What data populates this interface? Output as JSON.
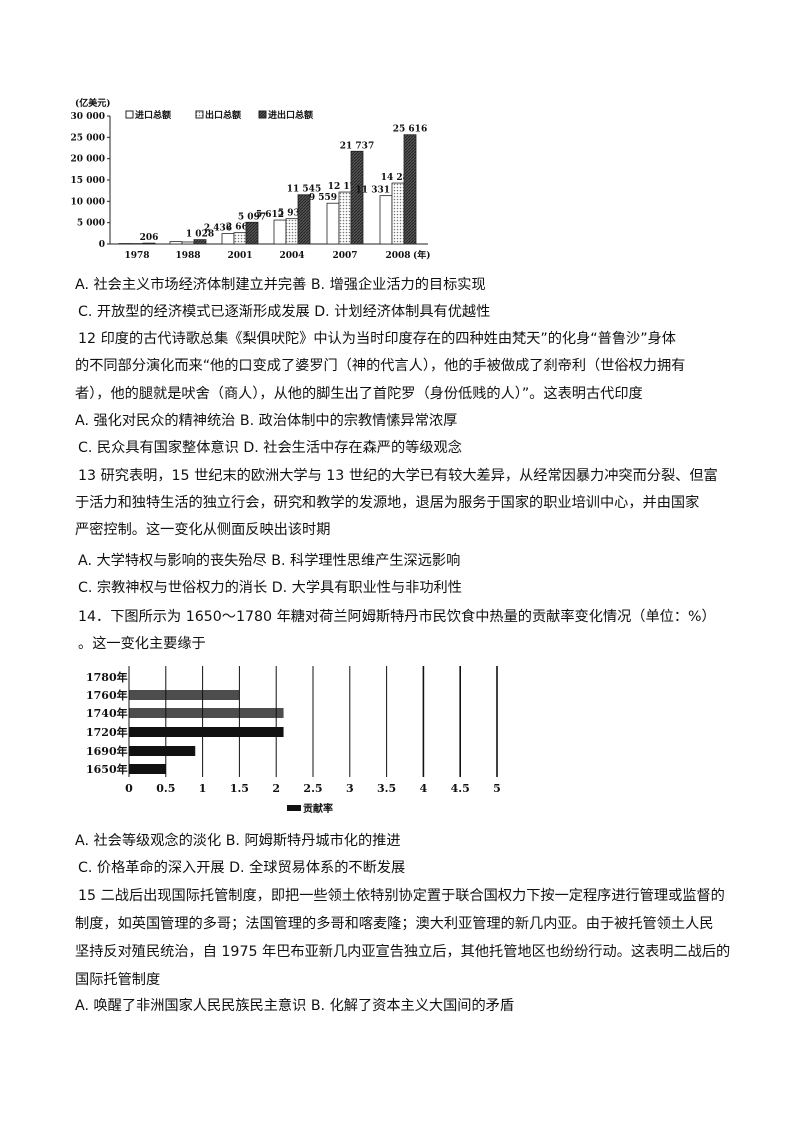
{
  "q11_options": {
    "A": "A. 社会主义市场经济体制建立并完善",
    "B": "B. 增强企业活力的目标实现",
    "C": "C. 开放型的经济模式已逐渐形成发展",
    "D": "D. 计划经济体制具有优越性"
  },
  "q12": {
    "stem": [
      "12 印度的古代诗歌总集《梨俱吠陀》中认为当时印度存在的四种姓由梵天”的化身“普鲁沙”身体",
      "的不同部分演化而来“他的口变成了婆罗门（神的代言人），他的手被做成了刹帝利（世俗权力拥有",
      "者），他的腿就是吠舍（商人），从他的脚生出了首陀罗（身份低贱的人）”。这表明古代印度"
    ],
    "A": "A. 强化对民众的精神统治",
    "B": "B. 政治体制中的宗教情愫异常浓厚",
    "C": "C. 民众具有国家整体意识",
    "D": "D. 社会生活中存在森严的等级观念"
  },
  "q13": {
    "stem": [
      "13 研究表明，15 世纪末的欧洲大学与 13 世纪的大学已有较大差异，从经常因暴力冲突而分裂、但富",
      "于活力和独特生活的独立行会，研究和教学的发源地，退居为服务于国家的职业培训中心，并由国家",
      "严密控制。这一变化从侧面反映出该时期"
    ],
    "A": "A. 大学特权与影响的丧失殆尽",
    "B": "B. 科学理性思维产生深远影响",
    "C": "C. 宗教神权与世俗权力的消长",
    "D": "D. 大学具有职业性与非功利性"
  },
  "q14": {
    "stem": [
      "14．下图所示为 1650～1780 年糖对荷兰阿姆斯特丹市民饮食中热量的贡献率变化情况（单位：%）",
      "。这一变化主要缘于"
    ],
    "A": "A. 社会等级观念的淡化",
    "B": "B. 阿姆斯特丹城市化的推进",
    "C": "C. 价格革命的深入开展",
    "D": "D. 全球贸易体系的不断发展"
  },
  "q15": {
    "stem": [
      "15 二战后出现国际托管制度，即把一些领土依特别协定置于联合国权力下按一定程序进行管理或监督的",
      "制度，如英国管理的多哥；法国管理的多哥和喀麦隆；澳大利亚管理的新几内亚。由于被托管领土人民",
      "坚持反对殖民统治，自 1975 年巴布亚新几内亚宣告独立后，其他托管地区也纷纷行动。这表明二战后的",
      "国际托管制度"
    ],
    "A": "A. 唤醒了非洲国家人民民族民主意识",
    "B": "B. 化解了资本主义大国间的矛盾"
  },
  "chart_data": [
    {
      "type": "bar",
      "ylabel": "(亿美元)",
      "xlabel": "(年)",
      "categories": [
        "1978",
        "1988",
        "2001",
        "2004",
        "2007",
        "2008"
      ],
      "series": [
        {
          "name": "进口总额",
          "values": [
            109,
            553,
            2436,
            5612,
            9559,
            11331
          ],
          "labels": [
            "",
            "",
            "2 436",
            "5 612",
            "9 559",
            "11 331"
          ]
        },
        {
          "name": "出口总额",
          "values": [
            97,
            475,
            2661,
            5933,
            12178,
            14285
          ],
          "labels": [
            "",
            "",
            "2 661",
            "5 933",
            "12 178",
            "14 285"
          ]
        },
        {
          "name": "进出口总额",
          "values": [
            206,
            1028,
            5097,
            11545,
            21737,
            25616
          ],
          "labels": [
            "206",
            "1 028",
            "5 097",
            "11 545",
            "21 737",
            "25 616"
          ]
        }
      ],
      "yticks": [
        "0",
        "5 000",
        "10 000",
        "15 000",
        "20 000",
        "25 000",
        "30 000"
      ],
      "ylim": [
        0,
        30000
      ],
      "legend": "top"
    },
    {
      "type": "bar",
      "orientation": "horizontal",
      "categories": [
        "1780年",
        "1760年",
        "1740年",
        "1720年",
        "1690年",
        "1650年"
      ],
      "series": [
        {
          "name": "贡献率",
          "values": [
            null,
            1.5,
            2.1,
            2.1,
            0.9,
            0.5
          ]
        }
      ],
      "xticks": [
        "0",
        "0.5",
        "1",
        "1.5",
        "2",
        "2.5",
        "3",
        "3.5",
        "4",
        "4.5",
        "5"
      ],
      "xlim": [
        0,
        5
      ],
      "grid": true,
      "legend": "bottom"
    }
  ]
}
